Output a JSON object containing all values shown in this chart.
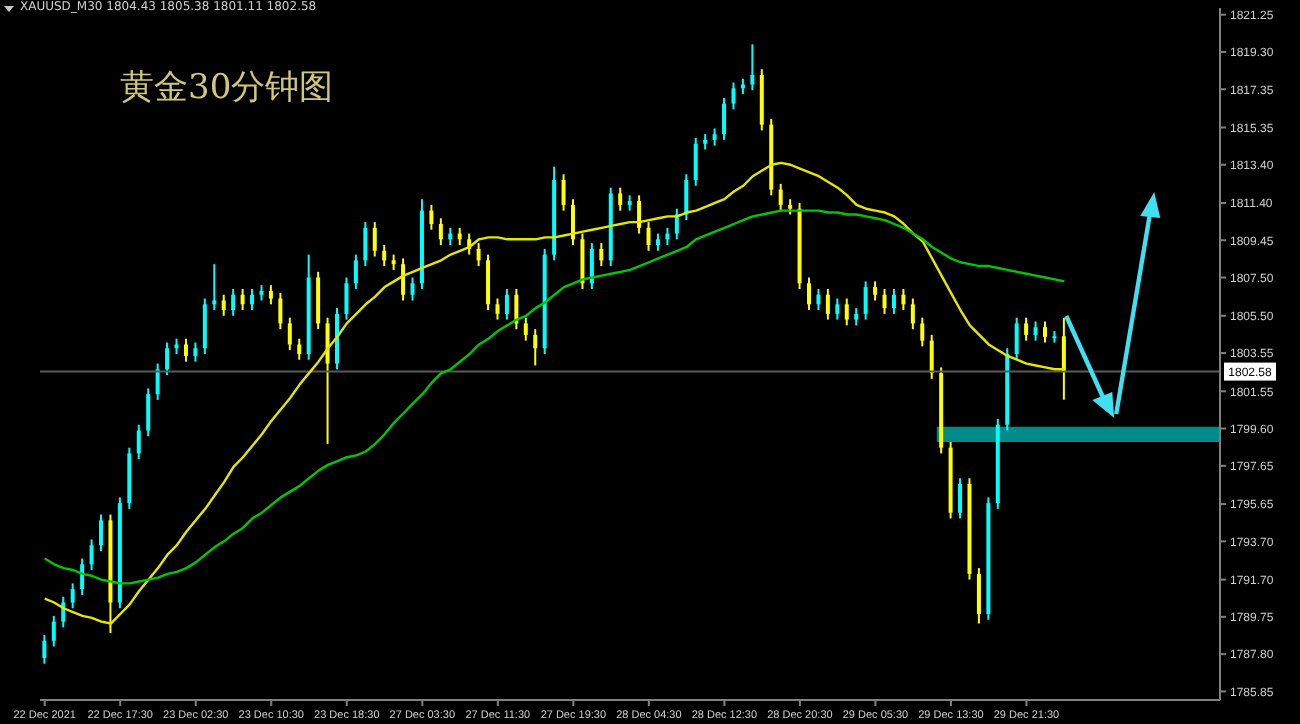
{
  "chart_data": {
    "type": "candlestick",
    "title": "黄金30分钟图",
    "subtitle": "XAUUSD_M30 1804.43 1805.38 1801.11 1802.58",
    "categories": [
      "22 Dec 2021",
      null,
      null,
      null,
      null,
      null,
      null,
      null,
      "22 Dec 17:30",
      null,
      null,
      null,
      null,
      null,
      null,
      null,
      "23 Dec 02:30",
      null,
      null,
      null,
      null,
      null,
      null,
      null,
      "23 Dec 10:30",
      null,
      null,
      null,
      null,
      null,
      null,
      null,
      "23 Dec 18:30",
      null,
      null,
      null,
      null,
      null,
      null,
      null,
      "27 Dec 03:30",
      null,
      null,
      null,
      null,
      null,
      null,
      null,
      "27 Dec 11:30",
      null,
      null,
      null,
      null,
      null,
      null,
      null,
      "27 Dec 19:30",
      null,
      null,
      null,
      null,
      null,
      null,
      null,
      "28 Dec 04:30",
      null,
      null,
      null,
      null,
      null,
      null,
      null,
      "28 Dec 12:30",
      null,
      null,
      null,
      null,
      null,
      null,
      null,
      "28 Dec 20:30",
      null,
      null,
      null,
      null,
      null,
      null,
      null,
      "29 Dec 05:30",
      null,
      null,
      null,
      null,
      null,
      null,
      null,
      "29 Dec 13:30",
      null,
      null,
      null,
      null,
      null,
      null,
      null,
      "29 Dec 21:30",
      null,
      null,
      null,
      null,
      null,
      null,
      null,
      null,
      null,
      null,
      null,
      null,
      null,
      null,
      null,
      null,
      null,
      null,
      null,
      null
    ],
    "ohlc": [
      [
        1787.6,
        1788.8,
        1787.3,
        1788.5
      ],
      [
        1788.5,
        1789.8,
        1788.2,
        1789.5
      ],
      [
        1789.5,
        1790.8,
        1789.2,
        1790.5
      ],
      [
        1790.5,
        1791.5,
        1790.2,
        1791.2
      ],
      [
        1791.2,
        1792.8,
        1790.9,
        1792.5
      ],
      [
        1792.5,
        1793.8,
        1792.2,
        1793.5
      ],
      [
        1793.5,
        1795.1,
        1793.2,
        1794.8
      ],
      [
        1794.8,
        1795.1,
        1788.9,
        1790.5
      ],
      [
        1790.5,
        1796.0,
        1790.2,
        1795.7
      ],
      [
        1795.7,
        1798.6,
        1795.4,
        1798.3
      ],
      [
        1798.3,
        1799.8,
        1798.0,
        1799.5
      ],
      [
        1799.5,
        1801.7,
        1799.2,
        1801.4
      ],
      [
        1801.4,
        1803.0,
        1801.1,
        1802.7
      ],
      [
        1802.7,
        1804.1,
        1802.4,
        1803.8
      ],
      [
        1803.8,
        1804.3,
        1803.5,
        1804.0
      ],
      [
        1804.0,
        1804.3,
        1803.1,
        1803.4
      ],
      [
        1803.4,
        1804.1,
        1803.1,
        1803.8
      ],
      [
        1803.8,
        1806.4,
        1803.5,
        1806.1
      ],
      [
        1806.1,
        1808.2,
        1805.8,
        1806.3
      ],
      [
        1806.3,
        1806.6,
        1805.5,
        1805.8
      ],
      [
        1805.8,
        1806.9,
        1805.5,
        1806.6
      ],
      [
        1806.6,
        1806.9,
        1805.8,
        1806.1
      ],
      [
        1806.1,
        1806.9,
        1805.8,
        1806.6
      ],
      [
        1806.6,
        1807.1,
        1806.3,
        1806.8
      ],
      [
        1806.8,
        1807.1,
        1806.1,
        1806.4
      ],
      [
        1806.4,
        1806.7,
        1804.8,
        1805.1
      ],
      [
        1805.1,
        1805.4,
        1803.7,
        1804.0
      ],
      [
        1804.0,
        1804.3,
        1803.2,
        1803.5
      ],
      [
        1803.5,
        1808.7,
        1803.2,
        1807.5
      ],
      [
        1807.5,
        1807.8,
        1804.8,
        1805.1
      ],
      [
        1805.1,
        1805.4,
        1798.8,
        1803.0
      ],
      [
        1803.0,
        1805.9,
        1802.7,
        1805.6
      ],
      [
        1805.6,
        1807.5,
        1805.3,
        1807.2
      ],
      [
        1807.2,
        1808.7,
        1806.9,
        1808.4
      ],
      [
        1808.4,
        1810.4,
        1808.1,
        1810.1
      ],
      [
        1810.1,
        1810.4,
        1808.6,
        1808.9
      ],
      [
        1808.9,
        1809.2,
        1808.1,
        1808.4
      ],
      [
        1808.4,
        1808.7,
        1807.9,
        1808.2
      ],
      [
        1808.2,
        1808.5,
        1806.3,
        1806.6
      ],
      [
        1806.6,
        1807.5,
        1806.3,
        1807.2
      ],
      [
        1807.2,
        1811.6,
        1806.9,
        1811.0
      ],
      [
        1811.0,
        1811.3,
        1810.0,
        1810.3
      ],
      [
        1810.3,
        1810.6,
        1809.2,
        1809.5
      ],
      [
        1809.5,
        1810.1,
        1809.2,
        1809.8
      ],
      [
        1809.8,
        1810.1,
        1809.2,
        1809.5
      ],
      [
        1809.5,
        1809.8,
        1808.7,
        1809.0
      ],
      [
        1809.0,
        1809.3,
        1808.1,
        1808.4
      ],
      [
        1808.4,
        1808.7,
        1805.8,
        1806.1
      ],
      [
        1806.1,
        1806.4,
        1805.3,
        1805.6
      ],
      [
        1805.6,
        1806.9,
        1805.3,
        1806.6
      ],
      [
        1806.6,
        1806.9,
        1804.8,
        1805.1
      ],
      [
        1805.1,
        1805.4,
        1804.2,
        1804.5
      ],
      [
        1804.5,
        1804.8,
        1802.9,
        1803.8
      ],
      [
        1803.8,
        1809.0,
        1803.5,
        1808.7
      ],
      [
        1808.7,
        1813.3,
        1808.4,
        1812.6
      ],
      [
        1812.6,
        1812.9,
        1811.0,
        1811.3
      ],
      [
        1811.3,
        1811.6,
        1809.2,
        1809.5
      ],
      [
        1809.5,
        1809.8,
        1806.9,
        1807.2
      ],
      [
        1807.2,
        1809.3,
        1806.9,
        1809.0
      ],
      [
        1809.0,
        1809.3,
        1808.1,
        1808.4
      ],
      [
        1808.4,
        1812.2,
        1808.1,
        1811.9
      ],
      [
        1811.9,
        1812.2,
        1811.0,
        1811.3
      ],
      [
        1811.3,
        1811.8,
        1811.0,
        1811.5
      ],
      [
        1811.5,
        1811.8,
        1809.8,
        1810.1
      ],
      [
        1810.1,
        1810.4,
        1808.9,
        1809.2
      ],
      [
        1809.2,
        1809.8,
        1808.9,
        1809.5
      ],
      [
        1809.5,
        1810.1,
        1809.2,
        1809.8
      ],
      [
        1809.8,
        1811.1,
        1809.5,
        1810.8
      ],
      [
        1810.8,
        1812.9,
        1810.5,
        1812.6
      ],
      [
        1812.6,
        1814.8,
        1812.3,
        1814.5
      ],
      [
        1814.5,
        1815.0,
        1814.2,
        1814.7
      ],
      [
        1814.7,
        1815.3,
        1814.4,
        1815.0
      ],
      [
        1815.0,
        1816.9,
        1814.7,
        1816.6
      ],
      [
        1816.6,
        1817.7,
        1816.3,
        1817.4
      ],
      [
        1817.4,
        1817.9,
        1817.1,
        1817.6
      ],
      [
        1817.6,
        1819.7,
        1817.3,
        1818.1
      ],
      [
        1818.1,
        1818.4,
        1815.2,
        1815.5
      ],
      [
        1815.5,
        1815.8,
        1811.8,
        1812.1
      ],
      [
        1812.1,
        1812.4,
        1811.0,
        1811.3
      ],
      [
        1811.3,
        1811.6,
        1810.8,
        1811.1
      ],
      [
        1811.1,
        1811.4,
        1806.9,
        1807.2
      ],
      [
        1807.2,
        1807.5,
        1805.8,
        1806.1
      ],
      [
        1806.1,
        1806.9,
        1805.8,
        1806.6
      ],
      [
        1806.6,
        1806.9,
        1805.3,
        1805.6
      ],
      [
        1805.6,
        1806.4,
        1805.3,
        1806.1
      ],
      [
        1806.1,
        1806.4,
        1805.0,
        1805.3
      ],
      [
        1805.3,
        1805.9,
        1805.0,
        1805.6
      ],
      [
        1805.6,
        1807.3,
        1805.3,
        1807.0
      ],
      [
        1807.0,
        1807.3,
        1806.3,
        1806.6
      ],
      [
        1806.6,
        1806.9,
        1805.6,
        1805.9
      ],
      [
        1805.9,
        1806.9,
        1805.6,
        1806.6
      ],
      [
        1806.6,
        1806.9,
        1805.8,
        1806.1
      ],
      [
        1806.1,
        1806.4,
        1804.8,
        1805.1
      ],
      [
        1805.1,
        1805.4,
        1803.9,
        1804.2
      ],
      [
        1804.2,
        1804.5,
        1802.2,
        1802.5
      ],
      [
        1802.5,
        1802.8,
        1798.3,
        1798.6
      ],
      [
        1798.6,
        1798.9,
        1794.9,
        1795.2
      ],
      [
        1795.2,
        1797.0,
        1794.9,
        1796.7
      ],
      [
        1796.7,
        1797.0,
        1791.7,
        1792.0
      ],
      [
        1792.0,
        1792.3,
        1789.4,
        1789.9
      ],
      [
        1789.9,
        1796.0,
        1789.6,
        1795.7
      ],
      [
        1795.7,
        1800.1,
        1795.4,
        1799.8
      ],
      [
        1799.8,
        1803.8,
        1799.5,
        1803.5
      ],
      [
        1803.5,
        1805.4,
        1803.2,
        1805.1
      ],
      [
        1805.1,
        1805.4,
        1804.2,
        1804.5
      ],
      [
        1804.5,
        1805.2,
        1804.2,
        1804.9
      ],
      [
        1804.9,
        1805.2,
        1804.1,
        1804.4
      ],
      [
        1804.4,
        1804.7,
        1804.1,
        1804.43
      ],
      [
        1804.43,
        1805.38,
        1801.11,
        1802.58
      ],
      null,
      null,
      null,
      null,
      null,
      null,
      null,
      null,
      null,
      null,
      null,
      null,
      null,
      null,
      null,
      null
    ],
    "colors": [
      "#00ffff",
      "#00ffff",
      "#00ffff",
      "#00ffff",
      "#00ffff",
      "#00ffff",
      "#00ffff",
      "#ffff00",
      "#00ffff",
      "#00ffff",
      "#00ffff",
      "#00ffff",
      "#00ffff",
      "#00ffff",
      "#00ffff",
      "#ffff00",
      "#00ffff",
      "#00ffff",
      "#00ffff",
      "#ffff00",
      "#00ffff",
      "#ffff00",
      "#00ffff",
      "#00ffff",
      "#ffff00",
      "#ffff00",
      "#ffff00",
      "#ffff00",
      "#00ffff",
      "#ffff00",
      "#ffff00",
      "#00ffff",
      "#00ffff",
      "#00ffff",
      "#00ffff",
      "#ffff00",
      "#ffff00",
      "#ffff00",
      "#ffff00",
      "#00ffff",
      "#00ffff",
      "#ffff00",
      "#ffff00",
      "#00ffff",
      "#ffff00",
      "#ffff00",
      "#ffff00",
      "#ffff00",
      "#ffff00",
      "#00ffff",
      "#ffff00",
      "#ffff00",
      "#ffff00",
      "#00ffff",
      "#00ffff",
      "#ffff00",
      "#ffff00",
      "#ffff00",
      "#00ffff",
      "#ffff00",
      "#00ffff",
      "#ffff00",
      "#00ffff",
      "#ffff00",
      "#ffff00",
      "#00ffff",
      "#00ffff",
      "#00ffff",
      "#00ffff",
      "#00ffff",
      "#00ffff",
      "#00ffff",
      "#00ffff",
      "#00ffff",
      "#00ffff",
      "#00ffff",
      "#ffff00",
      "#ffff00",
      "#ffff00",
      "#ffff00",
      "#ffff00",
      "#ffff00",
      "#00ffff",
      "#ffff00",
      "#00ffff",
      "#ffff00",
      "#00ffff",
      "#00ffff",
      "#ffff00",
      "#ffff00",
      "#00ffff",
      "#ffff00",
      "#ffff00",
      "#ffff00",
      "#ffff00",
      "#ffff00",
      "#ffff00",
      "#00ffff",
      "#ffff00",
      "#ffff00",
      "#00ffff",
      "#00ffff",
      "#00ffff",
      "#00ffff",
      "#ffff00",
      "#00ffff",
      "#ffff00",
      "#00ffff",
      "#ffff00",
      null,
      null,
      null,
      null,
      null,
      null,
      null,
      null,
      null,
      null,
      null,
      null,
      null,
      null,
      null,
      null
    ],
    "series": [
      {
        "type": "line",
        "color": "#e6e600",
        "values": [
          1790.7,
          1790.5,
          1790.2,
          1790.0,
          1789.8,
          1789.7,
          1789.5,
          1789.4,
          1789.9,
          1790.4,
          1791.1,
          1791.7,
          1792.3,
          1793.0,
          1793.5,
          1794.2,
          1794.8,
          1795.4,
          1796.1,
          1796.8,
          1797.6,
          1798.1,
          1798.7,
          1799.3,
          1800.0,
          1800.6,
          1801.2,
          1801.9,
          1802.5,
          1803.1,
          1803.8,
          1804.4,
          1805.1,
          1805.6,
          1806.1,
          1806.5,
          1807.0,
          1807.3,
          1807.6,
          1807.8,
          1808.0,
          1808.2,
          1808.4,
          1808.7,
          1808.9,
          1809.1,
          1809.5,
          1809.6,
          1809.6,
          1809.5,
          1809.5,
          1809.5,
          1809.5,
          1809.6,
          1809.6,
          1809.7,
          1809.8,
          1809.9,
          1810.0,
          1810.1,
          1810.2,
          1810.3,
          1810.4,
          1810.4,
          1810.5,
          1810.6,
          1810.7,
          1810.7,
          1810.9,
          1811.0,
          1811.2,
          1811.4,
          1811.6,
          1812.0,
          1812.3,
          1812.8,
          1813.1,
          1813.4,
          1813.5,
          1813.4,
          1813.2,
          1813.0,
          1812.8,
          1812.5,
          1812.2,
          1811.8,
          1811.3,
          1811.1,
          1811.0,
          1810.9,
          1810.7,
          1810.3,
          1809.8,
          1809.4,
          1808.5,
          1807.6,
          1806.7,
          1805.8,
          1805.0,
          1804.5,
          1804.0,
          1803.7,
          1803.4,
          1803.2,
          1803.0,
          1802.9,
          1802.8,
          1802.7,
          1802.7,
          null,
          null,
          null,
          null,
          null,
          null,
          null,
          null,
          null,
          null,
          null,
          null,
          null,
          null,
          null,
          null
        ]
      },
      {
        "type": "line",
        "color": "#00c800",
        "values": [
          1792.8,
          1792.5,
          1792.3,
          1792.2,
          1792.0,
          1791.9,
          1791.7,
          1791.6,
          1791.5,
          1791.5,
          1791.6,
          1791.7,
          1791.8,
          1792.0,
          1792.1,
          1792.3,
          1792.6,
          1793.0,
          1793.4,
          1793.7,
          1794.1,
          1794.4,
          1794.9,
          1795.2,
          1795.6,
          1796.0,
          1796.3,
          1796.6,
          1797.0,
          1797.4,
          1797.7,
          1797.9,
          1798.1,
          1798.2,
          1798.4,
          1798.8,
          1799.3,
          1799.9,
          1800.4,
          1800.9,
          1801.4,
          1802.0,
          1802.5,
          1802.7,
          1803.1,
          1803.5,
          1804.0,
          1804.3,
          1804.7,
          1805.0,
          1805.3,
          1805.5,
          1805.9,
          1806.2,
          1806.6,
          1807.0,
          1807.2,
          1807.4,
          1807.5,
          1807.6,
          1807.7,
          1807.8,
          1807.9,
          1808.1,
          1808.3,
          1808.5,
          1808.7,
          1808.9,
          1809.1,
          1809.5,
          1809.7,
          1809.9,
          1810.1,
          1810.3,
          1810.5,
          1810.7,
          1810.8,
          1810.9,
          1811.0,
          1811.0,
          1811.0,
          1811.0,
          1811.0,
          1810.9,
          1810.9,
          1810.8,
          1810.8,
          1810.7,
          1810.6,
          1810.5,
          1810.3,
          1810.1,
          1809.8,
          1809.5,
          1809.1,
          1808.8,
          1808.5,
          1808.3,
          1808.2,
          1808.1,
          1808.1,
          1808.0,
          1807.9,
          1807.8,
          1807.7,
          1807.6,
          1807.5,
          1807.4,
          1807.3,
          null,
          null,
          null,
          null,
          null,
          null,
          null,
          null,
          null,
          null,
          null,
          null,
          null,
          null,
          null,
          null
        ]
      }
    ],
    "ylim": [
      1785.4,
      1821.6
    ],
    "yticks": [
      1821.25,
      {
        "value": 1819.3,
        "label": "1819.30"
      },
      1817.35,
      1815.35,
      {
        "value": 1813.4,
        "label": "1813.40"
      },
      {
        "value": 1811.4,
        "label": "1811.40"
      },
      1809.45,
      {
        "value": 1807.5,
        "label": "1807.50"
      },
      {
        "value": 1805.5,
        "label": "1805.50"
      },
      1803.55,
      1801.55,
      {
        "value": 1799.6,
        "label": "1799.60"
      },
      1797.65,
      1795.65,
      {
        "value": 1793.7,
        "label": "1793.70"
      },
      {
        "value": 1791.7,
        "label": "1791.70"
      },
      1789.75,
      {
        "value": 1787.8,
        "label": "1787.80"
      },
      1785.85
    ],
    "ref_lines": [
      {
        "axis": "y",
        "value": 1802.58,
        "label": "1802.58",
        "color": "#5a5a5a"
      }
    ],
    "bands": [
      {
        "axis": "y",
        "from": 1798.9,
        "to": 1799.7,
        "color": "#008b8b"
      }
    ]
  }
}
